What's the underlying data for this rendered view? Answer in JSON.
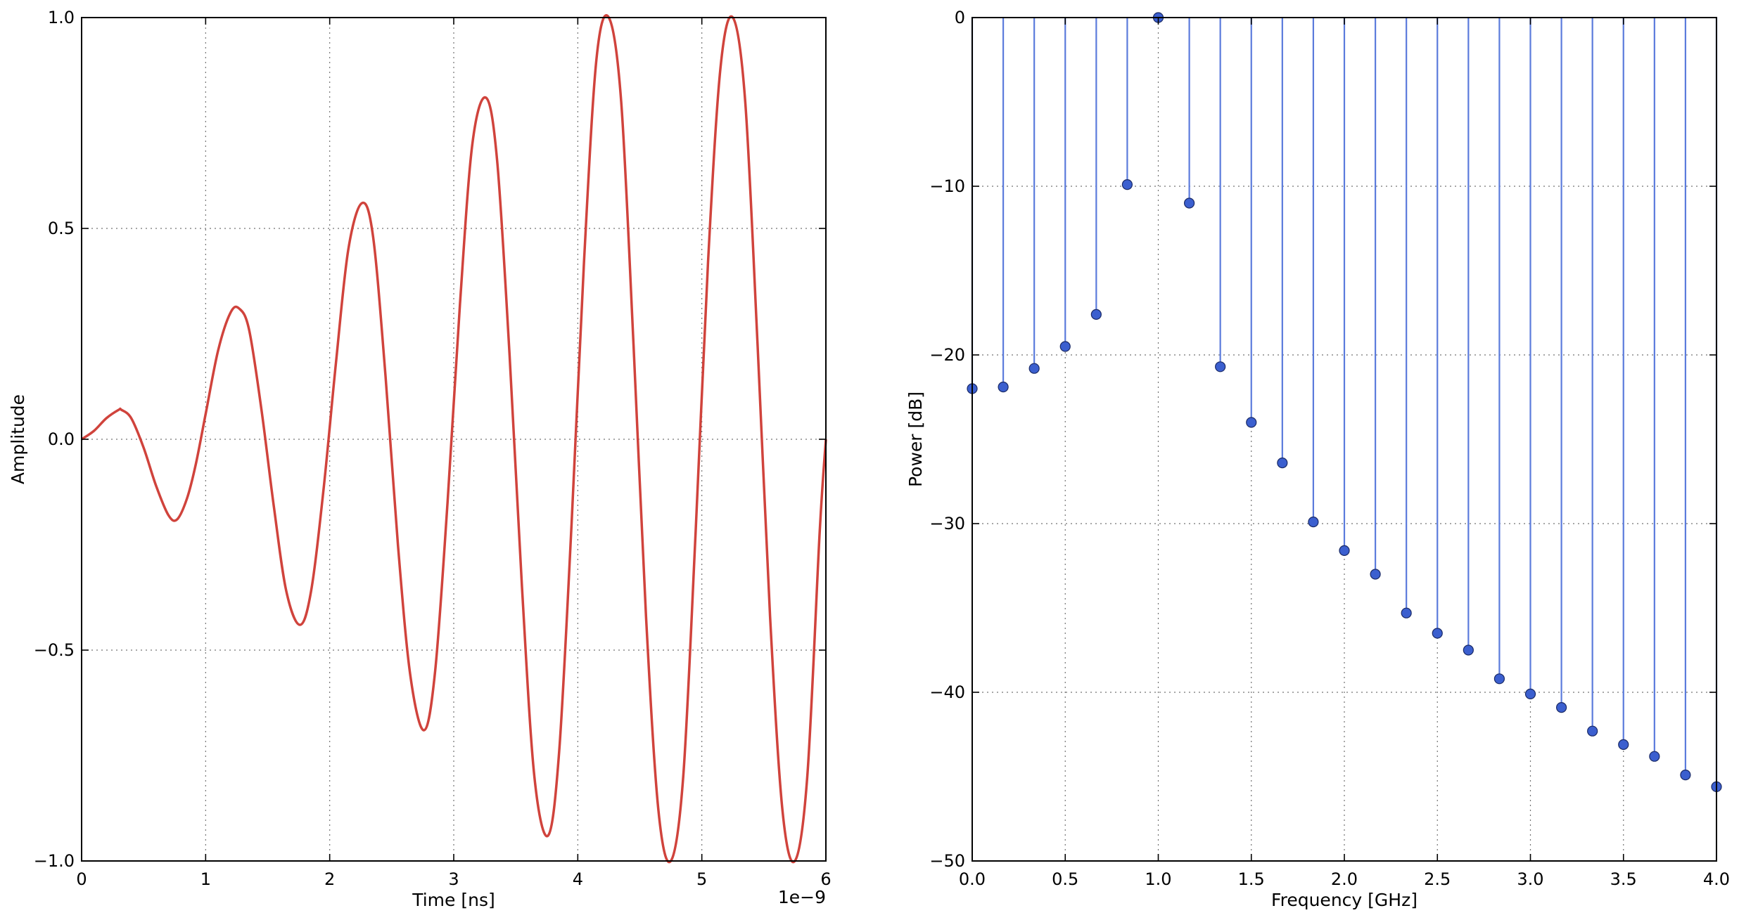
{
  "chart_data": [
    {
      "type": "line",
      "title": "",
      "xlabel": "Time [ns]",
      "ylabel": "Amplitude",
      "x_offset_label": "1e−9",
      "xlim": [
        0,
        6e-09
      ],
      "ylim": [
        -1.0,
        1.0
      ],
      "xticks": [
        0,
        1,
        2,
        3,
        4,
        5,
        6
      ],
      "xtick_labels": [
        "0",
        "1",
        "2",
        "3",
        "4",
        "5",
        "6"
      ],
      "yticks": [
        -1.0,
        -0.5,
        0.0,
        0.5,
        1.0
      ],
      "ytick_labels": [
        "−1.0",
        "−0.5",
        "0.0",
        "0.5",
        "1.0"
      ],
      "grid": true,
      "color": "#d0433c",
      "series": [
        {
          "x": [
            0,
            1e-10,
            2e-10,
            3e-10,
            3.2e-10,
            4e-10,
            5e-10,
            6e-10,
            7e-10,
            7.7e-10,
            8.5e-10,
            9.2e-10,
            1e-09,
            1.1e-09,
            1.2e-09,
            1.27e-09,
            1.35e-09,
            1.45e-09,
            1.55e-09,
            1.65e-09,
            1.76e-09,
            1.85e-09,
            1.95e-09,
            2.05e-09,
            2.15e-09,
            2.26e-09,
            2.35e-09,
            2.45e-09,
            2.55e-09,
            2.65e-09,
            2.76e-09,
            2.85e-09,
            2.95e-09,
            3.05e-09,
            3.15e-09,
            3.26e-09,
            3.35e-09,
            3.45e-09,
            3.55e-09,
            3.65e-09,
            3.76e-09,
            3.85e-09,
            3.95e-09,
            4.05e-09,
            4.15e-09,
            4.25e-09,
            4.35e-09,
            4.45e-09,
            4.55e-09,
            4.65e-09,
            4.75e-09,
            4.85e-09,
            4.95e-09,
            5.05e-09,
            5.15e-09,
            5.25e-09,
            5.35e-09,
            5.45e-09,
            5.55e-09,
            5.65e-09,
            5.75e-09,
            5.85e-09,
            5.95e-09,
            6e-09
          ],
          "y": [
            0,
            0.02,
            0.05,
            0.07,
            0.07,
            0.05,
            -0.02,
            -0.11,
            -0.18,
            -0.19,
            -0.14,
            -0.06,
            0.06,
            0.21,
            0.3,
            0.31,
            0.26,
            0.07,
            -0.16,
            -0.36,
            -0.44,
            -0.36,
            -0.12,
            0.18,
            0.45,
            0.56,
            0.48,
            0.15,
            -0.25,
            -0.56,
            -0.69,
            -0.55,
            -0.15,
            0.32,
            0.7,
            0.81,
            0.66,
            0.2,
            -0.35,
            -0.8,
            -0.94,
            -0.74,
            -0.2,
            0.42,
            0.9,
            1.0,
            0.8,
            0.22,
            -0.42,
            -0.88,
            -1.0,
            -0.8,
            -0.22,
            0.42,
            0.88,
            1.0,
            0.8,
            0.22,
            -0.42,
            -0.88,
            -1.0,
            -0.8,
            -0.22,
            0.0
          ]
        }
      ]
    },
    {
      "type": "stem",
      "title": "",
      "xlabel": "Frequency [GHz]",
      "ylabel": "Power [dB]",
      "xlim": [
        0.0,
        4.0
      ],
      "ylim": [
        -50,
        0
      ],
      "xticks": [
        0.0,
        0.5,
        1.0,
        1.5,
        2.0,
        2.5,
        3.0,
        3.5,
        4.0
      ],
      "xtick_labels": [
        "0.0",
        "0.5",
        "1.0",
        "1.5",
        "2.0",
        "2.5",
        "3.0",
        "3.5",
        "4.0"
      ],
      "yticks": [
        -50,
        -40,
        -30,
        -20,
        -10,
        0
      ],
      "ytick_labels": [
        "−50",
        "−40",
        "−30",
        "−20",
        "−10",
        "0"
      ],
      "grid": true,
      "stem_color": "#5b7bdc",
      "marker_color": "#3b5fcf",
      "series": [
        {
          "x": [
            0.0,
            0.1667,
            0.3333,
            0.5,
            0.6667,
            0.8333,
            1.0,
            1.1667,
            1.3333,
            1.5,
            1.6667,
            1.8333,
            2.0,
            2.1667,
            2.3333,
            2.5,
            2.6667,
            2.8333,
            3.0,
            3.1667,
            3.3333,
            3.5,
            3.6667,
            3.8333,
            4.0
          ],
          "y": [
            -22.0,
            -21.9,
            -20.8,
            -19.5,
            -17.6,
            -9.9,
            0.0,
            -11.0,
            -20.7,
            -24.0,
            -26.4,
            -29.9,
            -31.6,
            -33.0,
            -35.3,
            -36.5,
            -37.5,
            -39.2,
            -40.1,
            -40.9,
            -42.3,
            -43.1,
            -43.8,
            -44.9,
            -45.6
          ]
        }
      ]
    }
  ]
}
